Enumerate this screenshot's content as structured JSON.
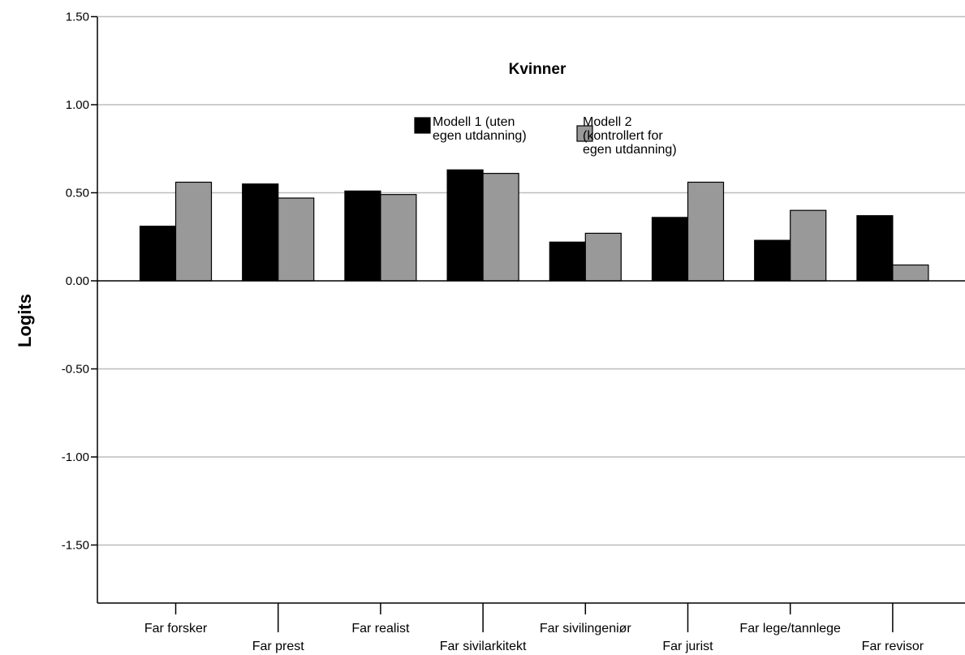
{
  "chart_data": {
    "type": "bar",
    "title": "Kvinner",
    "ylabel": "Logits",
    "xlabel": "",
    "ylim": [
      -1.85,
      1.5
    ],
    "yticks": [
      1.5,
      1.0,
      0.5,
      0.0,
      -0.5,
      -1.0,
      -1.5
    ],
    "ytick_labels": [
      "1.50",
      "1.00",
      "0.50",
      "0.00",
      "-0.50",
      "-1.00",
      "-1.50"
    ],
    "grid": true,
    "legend_position": "top-center",
    "categories": [
      "Far forsker",
      "Far prest",
      "Far realist",
      "Far sivilarkitekt",
      "Far sivilingeniør",
      "Far jurist",
      "Far lege/tannlege",
      "Far revisor"
    ],
    "series": [
      {
        "name": "Modell 1 (uten egen utdanning)",
        "legend_lines": [
          "Modell 1 (uten",
          "egen utdanning)"
        ],
        "color": "#000000",
        "values": [
          0.31,
          0.55,
          0.51,
          0.63,
          0.22,
          0.36,
          0.23,
          0.37
        ]
      },
      {
        "name": "Modell 2 (kontrollert for egen utdanning)",
        "legend_lines": [
          "Modell 2",
          "(kontrollert for",
          "egen utdanning)"
        ],
        "color": "#999999",
        "values": [
          0.56,
          0.47,
          0.49,
          0.61,
          0.27,
          0.56,
          0.4,
          0.09
        ]
      }
    ]
  }
}
